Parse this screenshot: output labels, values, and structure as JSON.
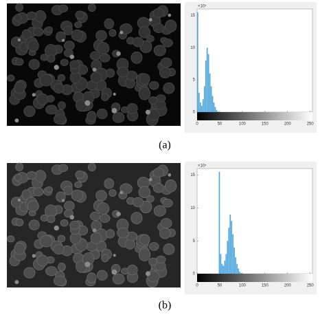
{
  "chart_data": [
    {
      "type": "histogram",
      "y_exponent_label": "×10⁴",
      "bins": [
        0,
        3,
        6,
        9,
        12,
        15,
        18,
        21,
        24,
        27,
        30,
        33,
        36,
        39,
        42,
        45,
        48
      ],
      "counts": [
        15.5,
        3,
        1.5,
        1,
        2,
        4,
        8,
        10,
        9,
        6,
        4,
        2.5,
        1.5,
        0.8,
        0.3,
        0.1
      ],
      "color": "#4da6dc",
      "xlim": [
        0,
        255
      ],
      "ylim": [
        0,
        16
      ],
      "xticks": [
        0,
        50,
        100,
        150,
        200,
        250
      ],
      "yticks": [
        0,
        5,
        10,
        15
      ]
    },
    {
      "type": "histogram",
      "y_exponent_label": "×10⁴",
      "bins": [
        48,
        51,
        54,
        57,
        60,
        63,
        66,
        69,
        72,
        75,
        78,
        81,
        84,
        87,
        90,
        93,
        96,
        99
      ],
      "counts": [
        15.5,
        3,
        1.5,
        1.2,
        2,
        3,
        5,
        7,
        9,
        8,
        6,
        4,
        2.5,
        1.5,
        0.8,
        0.3,
        0.1
      ],
      "color": "#4da6dc",
      "xlim": [
        0,
        255
      ],
      "ylim": [
        0,
        16
      ],
      "xticks": [
        0,
        50,
        100,
        150,
        200,
        250
      ],
      "yticks": [
        0,
        5,
        10,
        15
      ]
    }
  ],
  "captions": [
    "(a)",
    "(b)"
  ]
}
